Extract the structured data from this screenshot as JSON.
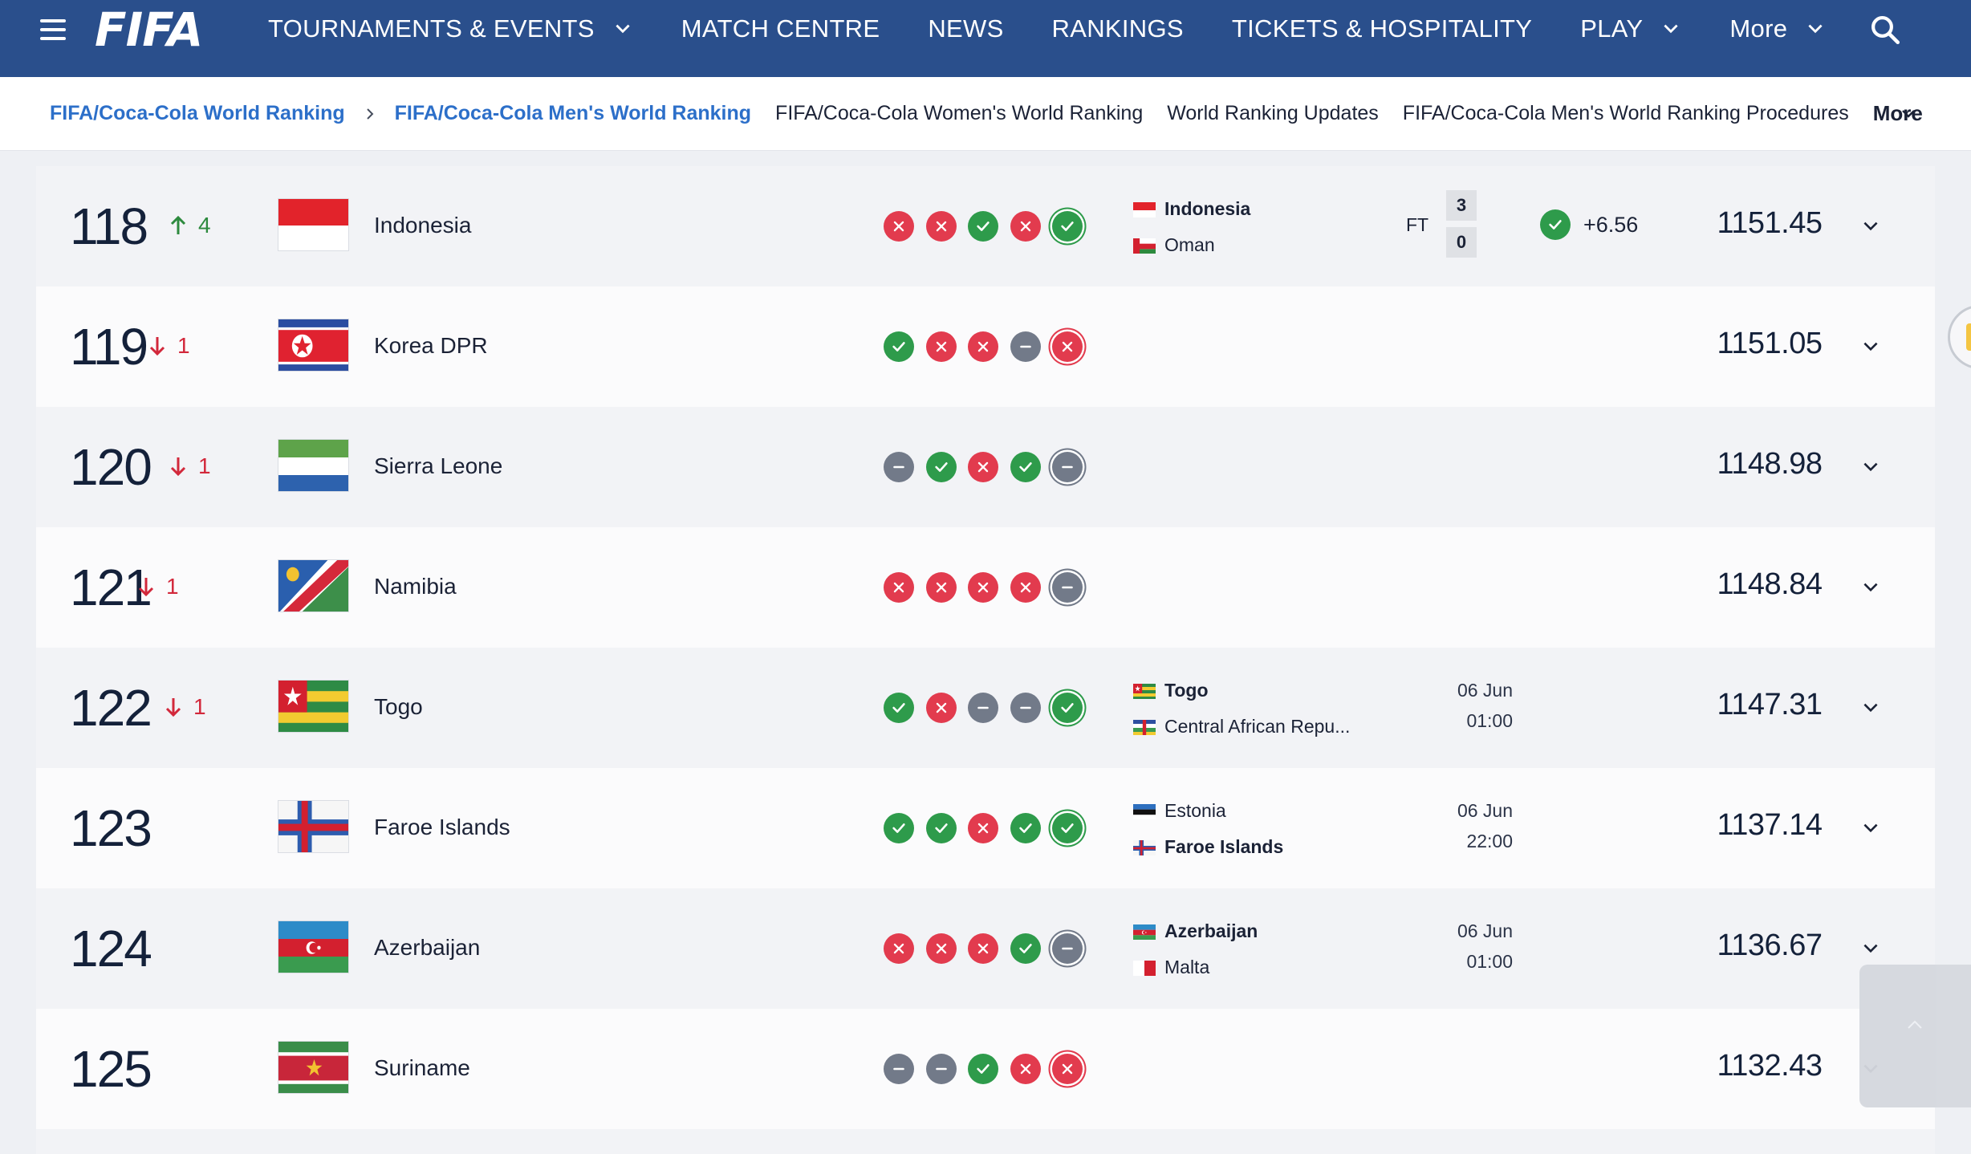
{
  "nav": {
    "logo": "FIFA",
    "items": [
      {
        "label": "TOURNAMENTS & EVENTS",
        "dropdown": true
      },
      {
        "label": "MATCH CENTRE",
        "dropdown": false
      },
      {
        "label": "NEWS",
        "dropdown": false
      },
      {
        "label": "RANKINGS",
        "dropdown": false
      },
      {
        "label": "TICKETS & HOSPITALITY",
        "dropdown": false
      },
      {
        "label": "PLAY",
        "dropdown": true
      },
      {
        "label": "More",
        "dropdown": true
      }
    ]
  },
  "subnav": {
    "crumb_root": "FIFA/Coca-Cola World Ranking",
    "crumb_current": "FIFA/Coca-Cola Men's World Ranking",
    "links": [
      "FIFA/Coca-Cola Women's World Ranking",
      "World Ranking Updates",
      "FIFA/Coca-Cola Men's World Ranking Procedures"
    ],
    "more": "More"
  },
  "colors": {
    "win": "#2e9b4b",
    "loss": "#e23b4e",
    "draw": "#727a89",
    "nav": "#2a4f8c",
    "link": "#2c6fc9"
  },
  "rows": [
    {
      "rank": "118",
      "move_dir": "up",
      "move": "4",
      "team": "Indonesia",
      "flag": "indonesia",
      "form": [
        "l",
        "l",
        "w",
        "l",
        "w"
      ],
      "match": {
        "t1": "Indonesia",
        "f1": "indonesia",
        "b1": true,
        "t2": "Oman",
        "f2": "oman",
        "b2": false,
        "status": "FT",
        "s1": "3",
        "s2": "0"
      },
      "pts_result": "w",
      "pts_change": "+6.56",
      "points": "1151.45"
    },
    {
      "rank": "119",
      "move_dir": "down",
      "move": "1",
      "team": "Korea DPR",
      "flag": "korea_dpr",
      "form": [
        "w",
        "l",
        "l",
        "d",
        "l"
      ],
      "match": null,
      "points": "1151.05"
    },
    {
      "rank": "120",
      "move_dir": "down",
      "move": "1",
      "team": "Sierra Leone",
      "flag": "sierra_leone",
      "form": [
        "d",
        "w",
        "l",
        "w",
        "d"
      ],
      "match": null,
      "points": "1148.98"
    },
    {
      "rank": "121",
      "move_dir": "down",
      "move": "1",
      "team": "Namibia",
      "flag": "namibia",
      "form": [
        "l",
        "l",
        "l",
        "l",
        "d"
      ],
      "match": null,
      "points": "1148.84"
    },
    {
      "rank": "122",
      "move_dir": "down",
      "move": "1",
      "team": "Togo",
      "flag": "togo",
      "form": [
        "w",
        "l",
        "d",
        "d",
        "w"
      ],
      "match": {
        "t1": "Togo",
        "f1": "togo",
        "b1": true,
        "t2": "Central African Repu...",
        "f2": "car",
        "b2": false,
        "date": "06 Jun",
        "time": "01:00"
      },
      "points": "1147.31"
    },
    {
      "rank": "123",
      "move_dir": "",
      "move": "",
      "team": "Faroe Islands",
      "flag": "faroe",
      "form": [
        "w",
        "w",
        "l",
        "w",
        "w"
      ],
      "match": {
        "t1": "Estonia",
        "f1": "estonia",
        "b1": false,
        "t2": "Faroe Islands",
        "f2": "faroe",
        "b2": true,
        "date": "06 Jun",
        "time": "22:00"
      },
      "points": "1137.14"
    },
    {
      "rank": "124",
      "move_dir": "",
      "move": "",
      "team": "Azerbaijan",
      "flag": "azerbaijan",
      "form": [
        "l",
        "l",
        "l",
        "w",
        "d"
      ],
      "match": {
        "t1": "Azerbaijan",
        "f1": "azerbaijan",
        "b1": true,
        "t2": "Malta",
        "f2": "malta",
        "b2": false,
        "date": "06 Jun",
        "time": "01:00"
      },
      "points": "1136.67"
    },
    {
      "rank": "125",
      "move_dir": "",
      "move": "",
      "team": "Suriname",
      "flag": "suriname",
      "form": [
        "d",
        "d",
        "w",
        "l",
        "l"
      ],
      "match": null,
      "points": "1132.43"
    }
  ]
}
